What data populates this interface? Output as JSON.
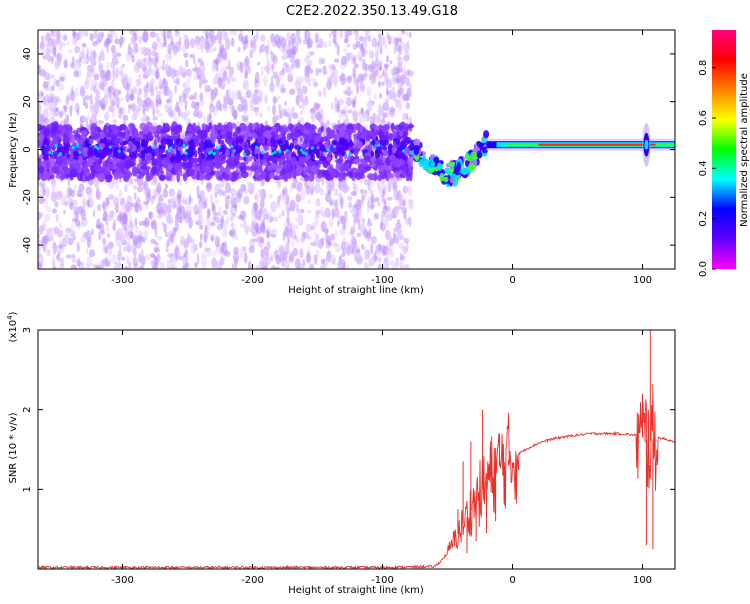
{
  "figure": {
    "title": "C2E2.2022.350.13.49.G18"
  },
  "chart_data": [
    {
      "type": "heatmap",
      "xlabel": "Height of straight line (km)",
      "ylabel": "Frequency (Hz)",
      "xlim": [
        -365,
        125
      ],
      "ylim": [
        -50,
        50
      ],
      "x_ticks": [
        -300,
        -200,
        -100,
        0,
        100
      ],
      "y_ticks": [
        -40,
        -20,
        0,
        20,
        40
      ],
      "colorbar": {
        "label": "Normalized spectral amplitude",
        "range": [
          0.0,
          1.0
        ],
        "ticks": [
          "0.0",
          "0.2",
          "0.4",
          "0.6",
          "0.8"
        ],
        "colormap": [
          "#ff00ff",
          "#6000ff",
          "#0000ff",
          "#00ffff",
          "#00ff00",
          "#ffff00",
          "#ff8000",
          "#ff0000",
          "#ff0080"
        ]
      },
      "features": [
        {
          "x_range": [
            -365,
            -78
          ],
          "description": "broadband noise, dense band near 0 Hz",
          "band_hz": [
            -12,
            10
          ]
        },
        {
          "x_range": [
            -78,
            -20
          ],
          "description": "transition with dipping signal",
          "center_hz": [
            3,
            -10
          ]
        },
        {
          "x_range": [
            -20,
            125
          ],
          "description": "strong narrow line near 2 Hz",
          "center_hz": 2
        }
      ]
    },
    {
      "type": "line",
      "xlabel": "Height of straight line (km)",
      "ylabel": "SNR (10 * v/v)",
      "y_exponent_label": "(x10",
      "y_exponent_power": "4",
      "y_exponent_close": ")",
      "xlim": [
        -365,
        125
      ],
      "ylim": [
        0,
        3
      ],
      "x_ticks": [
        -300,
        -200,
        -100,
        0,
        100
      ],
      "y_ticks": [
        1,
        2,
        3
      ],
      "series": [
        {
          "color": "#e8302a",
          "points": [
            [
              -365,
              0.02
            ],
            [
              -300,
              0.02
            ],
            [
              -200,
              0.02
            ],
            [
              -100,
              0.02
            ],
            [
              -60,
              0.03
            ],
            [
              -55,
              0.1
            ],
            [
              -50,
              0.2
            ],
            [
              -45,
              0.35
            ],
            [
              -40,
              0.5
            ],
            [
              -35,
              0.65
            ],
            [
              -30,
              0.8
            ],
            [
              -25,
              0.95
            ],
            [
              -20,
              1.1
            ],
            [
              -15,
              1.2
            ],
            [
              -10,
              1.3
            ],
            [
              -5,
              1.35
            ],
            [
              0,
              1.4
            ],
            [
              10,
              1.5
            ],
            [
              20,
              1.58
            ],
            [
              30,
              1.63
            ],
            [
              40,
              1.66
            ],
            [
              60,
              1.7
            ],
            [
              80,
              1.7
            ],
            [
              95,
              1.68
            ],
            [
              100,
              1.65
            ],
            [
              105,
              1.6
            ],
            [
              110,
              1.65
            ],
            [
              115,
              1.64
            ],
            [
              125,
              1.6
            ]
          ],
          "spikes": [
            [
              -42,
              0.75
            ],
            [
              -38,
              1.35
            ],
            [
              -35,
              0.2
            ],
            [
              -32,
              1.6
            ],
            [
              -28,
              0.35
            ],
            [
              -23,
              2.0
            ],
            [
              -20,
              0.45
            ],
            [
              -17,
              1.55
            ],
            [
              -13,
              0.6
            ],
            [
              -10,
              1.7
            ],
            [
              -6,
              0.8
            ],
            [
              -3,
              1.3
            ],
            [
              100,
              2.2
            ],
            [
              103,
              0.3
            ],
            [
              106,
              3.0
            ],
            [
              108,
              0.25
            ]
          ]
        }
      ]
    }
  ]
}
